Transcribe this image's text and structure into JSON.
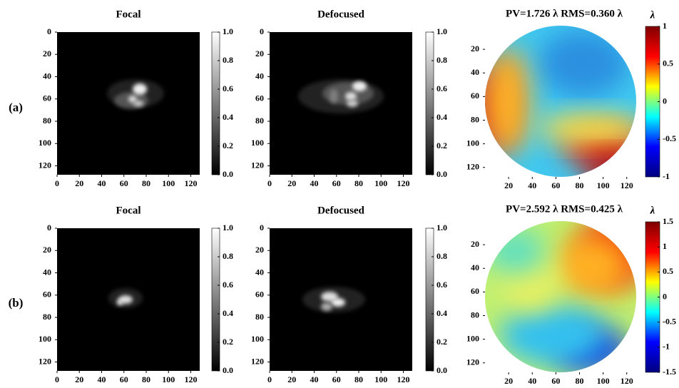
{
  "row_labels": [
    "(a)",
    "(b)"
  ],
  "chart_data": [
    {
      "type": "heatmap",
      "title": "Focal",
      "cmap": "gray",
      "xlim": [
        0,
        128
      ],
      "ylim": [
        0,
        128
      ],
      "xticks": [
        0,
        20,
        40,
        60,
        80,
        100,
        120
      ],
      "yticks": [
        0,
        20,
        40,
        60,
        80,
        100,
        120
      ],
      "clim": [
        0,
        1
      ],
      "cticks": [
        {
          "value": 0,
          "label": "0.0"
        },
        0.2,
        0.4,
        0.6,
        0.8,
        {
          "value": 1,
          "label": "1.0"
        }
      ]
    },
    {
      "type": "heatmap",
      "title": "Defocused",
      "cmap": "gray",
      "xlim": [
        0,
        128
      ],
      "ylim": [
        0,
        128
      ],
      "xticks": [
        0,
        20,
        40,
        60,
        80,
        100,
        120
      ],
      "yticks": [
        0,
        20,
        40,
        60,
        80,
        100,
        120
      ],
      "clim": [
        0,
        1
      ],
      "cticks": [
        {
          "value": 0,
          "label": "0.0"
        },
        0.2,
        0.4,
        0.6,
        0.8,
        {
          "value": 1,
          "label": "1.0"
        }
      ]
    },
    {
      "type": "wavefront",
      "title": "PV=1.726 λ    RMS=0.360 λ",
      "colorbar_label": "λ",
      "cmap": "jet",
      "xlim": [
        0,
        128
      ],
      "ylim": [
        0,
        128
      ],
      "xticks": [
        20,
        40,
        60,
        80,
        100,
        120
      ],
      "yticks": [
        20,
        40,
        60,
        80,
        100,
        120
      ],
      "clim": [
        -1,
        1
      ],
      "cticks": [
        -1,
        -0.5,
        0,
        0.5,
        1
      ]
    },
    {
      "type": "heatmap",
      "title": "Focal",
      "cmap": "gray",
      "xlim": [
        0,
        128
      ],
      "ylim": [
        0,
        128
      ],
      "xticks": [
        0,
        20,
        40,
        60,
        80,
        100,
        120
      ],
      "yticks": [
        0,
        20,
        40,
        60,
        80,
        100,
        120
      ],
      "clim": [
        0,
        1
      ],
      "cticks": [
        {
          "value": 0,
          "label": "0.0"
        },
        0.2,
        0.4,
        0.6,
        0.8,
        {
          "value": 1,
          "label": "1.0"
        }
      ]
    },
    {
      "type": "heatmap",
      "title": "Defocused",
      "cmap": "gray",
      "xlim": [
        0,
        128
      ],
      "ylim": [
        0,
        128
      ],
      "xticks": [
        0,
        20,
        40,
        60,
        80,
        100,
        120
      ],
      "yticks": [
        0,
        20,
        40,
        60,
        80,
        100,
        120
      ],
      "clim": [
        0,
        1
      ],
      "cticks": [
        {
          "value": 0,
          "label": "0.0"
        },
        0.2,
        0.4,
        0.6,
        0.8,
        {
          "value": 1,
          "label": "1.0"
        }
      ]
    },
    {
      "type": "wavefront",
      "title": "PV=2.592 λ    RMS=0.425 λ",
      "colorbar_label": "λ",
      "cmap": "jet",
      "xlim": [
        0,
        128
      ],
      "ylim": [
        0,
        128
      ],
      "xticks": [
        20,
        40,
        60,
        80,
        100,
        120
      ],
      "yticks": [
        20,
        40,
        60,
        80,
        100,
        120
      ],
      "clim": [
        -1.5,
        1.5
      ],
      "cticks": [
        -1.5,
        -1,
        -0.5,
        0,
        0.5,
        1,
        1.5
      ]
    }
  ]
}
